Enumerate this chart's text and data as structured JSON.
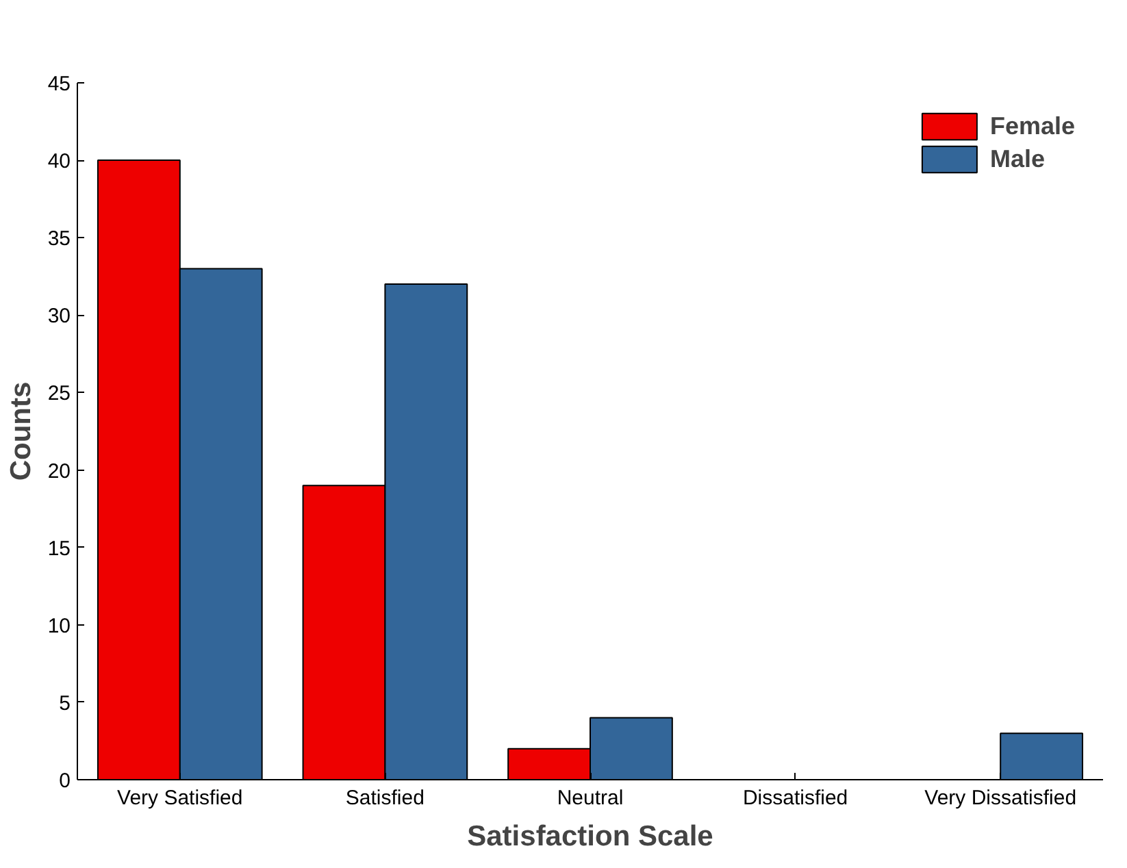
{
  "chart_data": {
    "type": "bar",
    "xlabel": "Satisfaction Scale",
    "ylabel": "Counts",
    "categories": [
      "Very Satisfied",
      "Satisfied",
      "Neutral",
      "Dissatisfied",
      "Very Dissatisfied"
    ],
    "series": [
      {
        "name": "Female",
        "color": "#ee0000",
        "values": [
          40,
          19,
          2,
          0,
          0
        ]
      },
      {
        "name": "Male",
        "color": "#336699",
        "values": [
          33,
          32,
          4,
          0,
          3
        ]
      }
    ],
    "ylim": [
      0,
      45
    ],
    "yticks": [
      0,
      5,
      10,
      15,
      20,
      25,
      30,
      35,
      40,
      45
    ],
    "grid": false,
    "legend": "top right"
  }
}
